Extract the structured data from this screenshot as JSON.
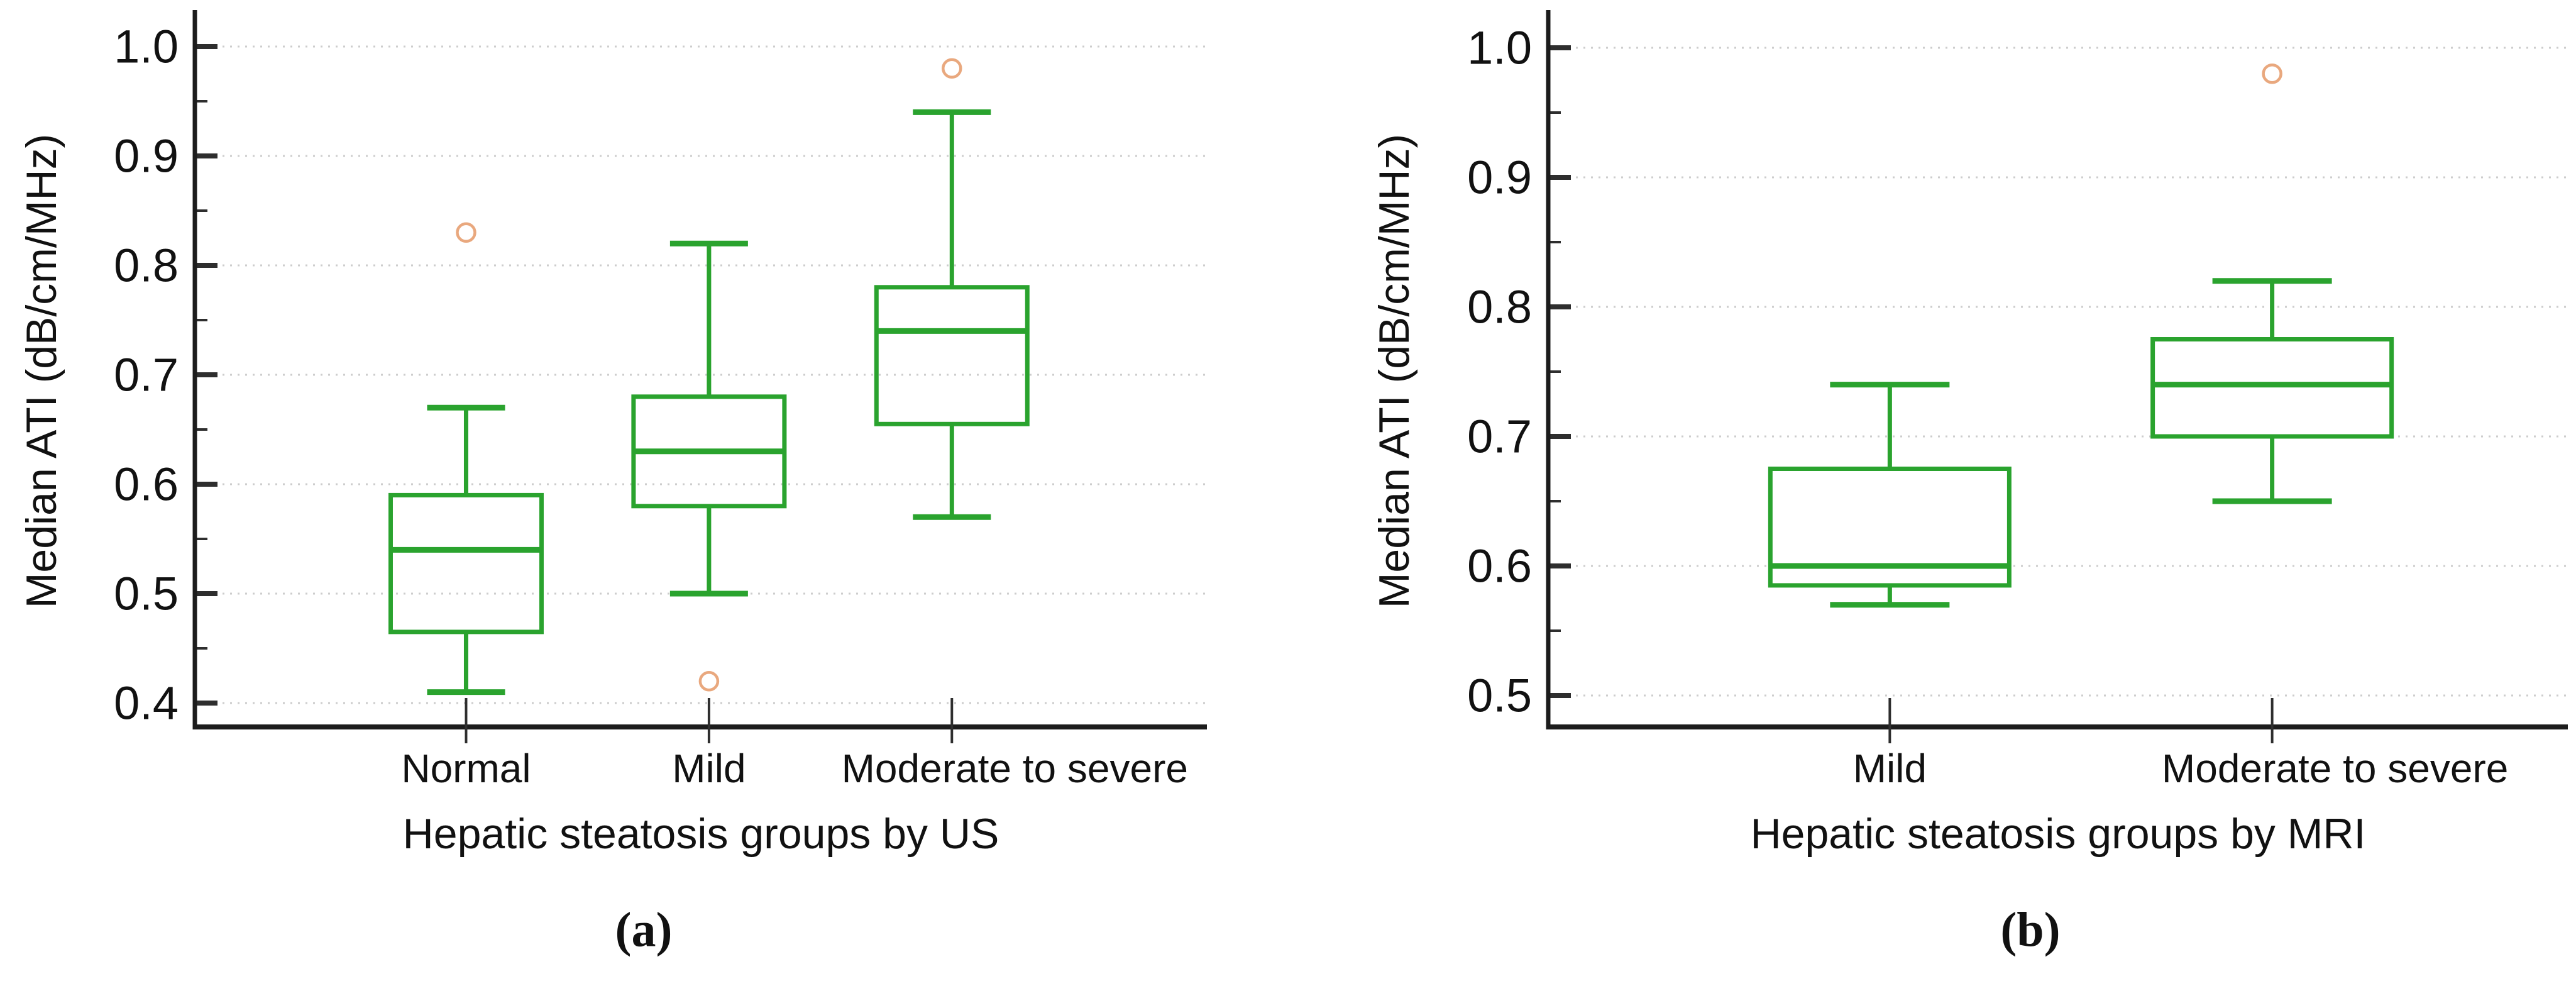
{
  "figure": {
    "background": "#ffffff",
    "box_color": "#2aa32e",
    "outlier_color": "#e9a87e",
    "axis_color": "#1c1c1c",
    "tick_color": "#2e2e2e",
    "grid_color": "#cdcdcd",
    "text_color": "#111111"
  },
  "chart_data": [
    {
      "type": "box",
      "panel_label": "(a)",
      "xlabel": "Hepatic steatosis groups by US",
      "ylabel": "Median ATI (dB/cm/MHz)",
      "ylim": [
        0.4,
        1.0
      ],
      "grid": "horizontal-dotted",
      "legend": "none",
      "yticks": [
        "1.0",
        "0.9",
        "0.8",
        "0.7",
        "0.6",
        "0.5",
        "0.4"
      ],
      "minor_tick_step": 0.05,
      "categories": [
        "Normal",
        "Mild",
        "Moderate to severe"
      ],
      "series": [
        {
          "category": "Normal",
          "whisker_low": 0.41,
          "q1": 0.465,
          "median": 0.54,
          "q3": 0.59,
          "whisker_high": 0.67,
          "outliers": [
            0.83
          ]
        },
        {
          "category": "Mild",
          "whisker_low": 0.5,
          "q1": 0.58,
          "median": 0.63,
          "q3": 0.68,
          "whisker_high": 0.82,
          "outliers": [
            0.42
          ]
        },
        {
          "category": "Moderate to severe",
          "whisker_low": 0.57,
          "q1": 0.655,
          "median": 0.74,
          "q3": 0.78,
          "whisker_high": 0.94,
          "outliers": [
            0.98
          ]
        }
      ]
    },
    {
      "type": "box",
      "panel_label": "(b)",
      "xlabel": "Hepatic steatosis groups by MRI",
      "ylabel": "Median ATI (dB/cm/MHz)",
      "ylim": [
        0.5,
        1.0
      ],
      "grid": "horizontal-dotted",
      "legend": "none",
      "yticks": [
        "1.0",
        "0.9",
        "0.8",
        "0.7",
        "0.6",
        "0.5"
      ],
      "minor_tick_step": 0.05,
      "categories": [
        "Mild",
        "Moderate to severe"
      ],
      "series": [
        {
          "category": "Mild",
          "whisker_low": 0.57,
          "q1": 0.585,
          "median": 0.6,
          "q3": 0.675,
          "whisker_high": 0.74,
          "outliers": []
        },
        {
          "category": "Moderate to severe",
          "whisker_low": 0.65,
          "q1": 0.7,
          "median": 0.74,
          "q3": 0.775,
          "whisker_high": 0.82,
          "outliers": [
            0.98
          ]
        }
      ]
    }
  ]
}
